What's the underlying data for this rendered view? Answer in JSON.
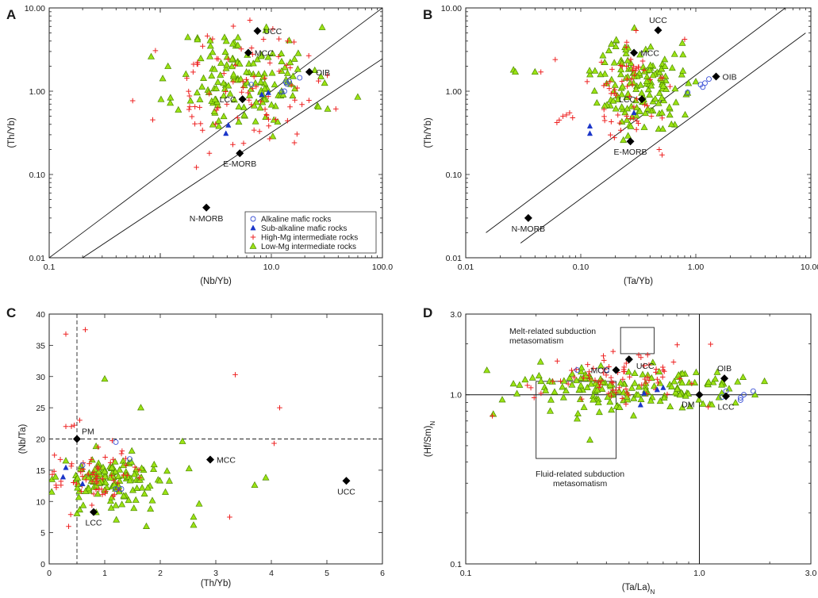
{
  "figure": {
    "legend": [
      {
        "label": "Alkaline mafic rocks",
        "symbol": "circle",
        "color": "#3a50d6"
      },
      {
        "label": "Sub-alkaline mafic rocks",
        "symbol": "triangle-filled",
        "color": "#1b36c9"
      },
      {
        "label": "High-Mg intermediate rocks",
        "symbol": "plus",
        "color": "#ee2222"
      },
      {
        "label": "Low-Mg intermediate rocks",
        "symbol": "triangle-open",
        "color": "#86d900"
      }
    ],
    "colors": {
      "alkaline": "#3a50d6",
      "subalkaline": "#1b36c9",
      "highmg": "#ee2222",
      "lowmg_fill": "#9be314",
      "lowmg_stroke": "#4e8a00",
      "ref": "#000000"
    }
  },
  "chart_data": [
    {
      "panel": "A",
      "type": "scatter",
      "xscale": "log",
      "yscale": "log",
      "xlabel": "(Nb/Yb)",
      "ylabel": "(Th/Yb)",
      "xlim": [
        0.1,
        100
      ],
      "ylim": [
        0.01,
        10
      ],
      "xticks": [
        0.1,
        10,
        100
      ],
      "xtick_labels": [
        "0.1",
        "10.0",
        "100.0"
      ],
      "xticks_unlabeled": [
        1
      ],
      "yticks": [
        0.01,
        0.1,
        1,
        10
      ],
      "ytick_labels": [
        "0.01",
        "0.10",
        "1.00",
        "10.00"
      ],
      "ref_lines": [
        {
          "name": "mantle-array-upper",
          "points": [
            [
              0.1,
              0.01
            ],
            [
              100,
              10
            ]
          ]
        },
        {
          "name": "mantle-array-lower",
          "points": [
            [
              0.2,
              0.01
            ],
            [
              100,
              2.45
            ]
          ]
        }
      ],
      "ref_points": [
        {
          "label": "UCC",
          "x": 7.5,
          "y": 5.3,
          "label_pos": "right"
        },
        {
          "label": "MCC",
          "x": 6.2,
          "y": 2.9,
          "label_pos": "right"
        },
        {
          "label": "LCC",
          "x": 5.5,
          "y": 0.8,
          "label_pos": "left"
        },
        {
          "label": "OIB",
          "x": 22,
          "y": 1.7,
          "label_pos": "right"
        },
        {
          "label": "E-MORB",
          "x": 5.2,
          "y": 0.18,
          "label_pos": "below"
        },
        {
          "label": "N-MORB",
          "x": 2.6,
          "y": 0.04,
          "label_pos": "below"
        }
      ],
      "clusters": [
        {
          "group": "lowmg",
          "n": 150,
          "cx": 5.8,
          "cy": 1.35,
          "sx": 0.3,
          "sy": 0.32,
          "seed": 11,
          "extra": [
            [
              1.7,
              1.6
            ],
            [
              2.8,
              2.6
            ],
            [
              60,
              0.85
            ],
            [
              4.5,
              3.7
            ]
          ]
        },
        {
          "group": "highmg",
          "n": 85,
          "cx": 5.0,
          "cy": 0.95,
          "sx": 0.35,
          "sy": 0.35,
          "seed": 23,
          "extra": [
            [
              2.4,
              0.34
            ],
            [
              14,
              4.0
            ],
            [
              16,
              3.9
            ],
            [
              3.3,
              0.63
            ],
            [
              8.5,
              4.2
            ]
          ]
        },
        {
          "group": "subalkaline",
          "n": 0,
          "extra": [
            [
              3.9,
              0.31
            ],
            [
              4.1,
              0.39
            ],
            [
              8.2,
              0.91
            ],
            [
              9.4,
              0.96
            ]
          ]
        },
        {
          "group": "alkaline",
          "n": 0,
          "extra": [
            [
              12.4,
              0.98
            ],
            [
              13.1,
              1.0
            ],
            [
              13.8,
              1.22
            ],
            [
              13.5,
              1.28
            ],
            [
              14.5,
              1.3
            ],
            [
              18.0,
              1.45
            ],
            [
              6.6,
              1.2
            ]
          ]
        }
      ],
      "legend_pos": "bottom-right"
    },
    {
      "panel": "B",
      "type": "scatter",
      "xscale": "log",
      "yscale": "log",
      "xlabel": "(Ta/Yb)",
      "ylabel": "(Th/Yb)",
      "xlim": [
        0.01,
        10
      ],
      "ylim": [
        0.01,
        10
      ],
      "xticks": [
        0.01,
        0.1,
        1,
        10
      ],
      "xtick_labels": [
        "0.01",
        "0.10",
        "1.00",
        "10.00"
      ],
      "yticks": [
        0.01,
        0.1,
        1,
        10
      ],
      "ytick_labels": [
        "0.01",
        "0.10",
        "1.00",
        "10.00"
      ],
      "ref_lines": [
        {
          "name": "mantle-array-upper",
          "points": [
            [
              0.015,
              0.02
            ],
            [
              6,
              10
            ]
          ]
        },
        {
          "name": "mantle-array-lower",
          "points": [
            [
              0.03,
              0.015
            ],
            [
              9,
              5
            ]
          ]
        }
      ],
      "ref_points": [
        {
          "label": "UCC",
          "x": 0.47,
          "y": 5.4,
          "label_pos": "above"
        },
        {
          "label": "MCC",
          "x": 0.29,
          "y": 2.9,
          "label_pos": "right"
        },
        {
          "label": "LCC",
          "x": 0.34,
          "y": 0.8,
          "label_pos": "left"
        },
        {
          "label": "OIB",
          "x": 1.5,
          "y": 1.5,
          "label_pos": "right"
        },
        {
          "label": "E-MORB",
          "x": 0.27,
          "y": 0.25,
          "label_pos": "below"
        },
        {
          "label": "N-MORB",
          "x": 0.035,
          "y": 0.03,
          "label_pos": "below"
        }
      ],
      "clusters": [
        {
          "group": "lowmg",
          "n": 150,
          "cx": 0.32,
          "cy": 1.2,
          "sx": 0.18,
          "sy": 0.28,
          "seed": 37,
          "extra": [
            [
              0.026,
              1.8
            ],
            [
              0.027,
              1.7
            ],
            [
              0.04,
              1.7
            ],
            [
              0.85,
              0.95
            ],
            [
              1.0,
              1.3
            ]
          ]
        },
        {
          "group": "highmg",
          "n": 60,
          "cx": 0.3,
          "cy": 1.0,
          "sx": 0.18,
          "sy": 0.3,
          "seed": 41,
          "extra": [
            [
              0.065,
              0.45
            ],
            [
              0.07,
              0.5
            ],
            [
              0.075,
              0.52
            ],
            [
              0.062,
              0.42
            ],
            [
              0.08,
              0.55
            ],
            [
              0.085,
              0.48
            ],
            [
              0.06,
              2.4
            ],
            [
              0.045,
              1.7
            ],
            [
              0.8,
              4.2
            ]
          ]
        },
        {
          "group": "subalkaline",
          "n": 0,
          "extra": [
            [
              0.12,
              0.31
            ],
            [
              0.12,
              0.38
            ],
            [
              0.29,
              0.55
            ]
          ]
        },
        {
          "group": "alkaline",
          "n": 0,
          "extra": [
            [
              0.85,
              0.97
            ],
            [
              1.1,
              1.2
            ],
            [
              1.2,
              1.25
            ],
            [
              1.3,
              1.4
            ],
            [
              1.15,
              1.12
            ]
          ]
        }
      ]
    },
    {
      "panel": "C",
      "type": "scatter",
      "xscale": "linear",
      "yscale": "linear",
      "xlabel": "(Th/Yb)",
      "ylabel": "(Nb/Ta)",
      "xlim": [
        0,
        6
      ],
      "ylim": [
        0,
        40
      ],
      "xticks": [
        0,
        1,
        2,
        3,
        4,
        5,
        6
      ],
      "xtick_labels": [
        "0",
        "1",
        "2",
        "3",
        "4",
        "5",
        "6"
      ],
      "yticks": [
        0,
        5,
        10,
        15,
        20,
        25,
        30,
        35,
        40
      ],
      "ytick_labels": [
        "0",
        "5",
        "10",
        "15",
        "20",
        "25",
        "30",
        "35",
        "40"
      ],
      "dashed_lines": [
        {
          "name": "pm-vertical",
          "x": 0.5
        },
        {
          "name": "pm-horizontal",
          "y": 20
        }
      ],
      "ref_points": [
        {
          "label": "PM",
          "x": 0.5,
          "y": 20,
          "label_pos": "upper-right"
        },
        {
          "label": "LCC",
          "x": 0.8,
          "y": 8.3,
          "label_pos": "below"
        },
        {
          "label": "MCC",
          "x": 2.9,
          "y": 16.7,
          "label_pos": "right"
        },
        {
          "label": "UCC",
          "x": 5.35,
          "y": 13.3,
          "label_pos": "below"
        }
      ],
      "clusters": [
        {
          "group": "lowmg",
          "n": 140,
          "cx": 1.15,
          "cy": 13.3,
          "sx": 0.5,
          "sy": 2.2,
          "seed": 53,
          "extra": [
            [
              1.0,
              29.6
            ],
            [
              1.65,
              25
            ],
            [
              2.4,
              19.6
            ],
            [
              2.6,
              7.5
            ],
            [
              2.6,
              6.2
            ],
            [
              2.7,
              9.6
            ],
            [
              3.7,
              12.6
            ],
            [
              3.9,
              13.8
            ],
            [
              1.75,
              6.0
            ],
            [
              0.3,
              16.5
            ]
          ]
        },
        {
          "group": "highmg",
          "n": 70,
          "cx": 0.7,
          "cy": 14.5,
          "sx": 0.5,
          "sy": 2.8,
          "seed": 61,
          "extra": [
            [
              0.3,
              36.8
            ],
            [
              0.65,
              37.5
            ],
            [
              3.35,
              30.3
            ],
            [
              4.15,
              25.0
            ],
            [
              4.05,
              19.3
            ],
            [
              3.25,
              7.5
            ],
            [
              0.35,
              6.0
            ],
            [
              0.3,
              22
            ],
            [
              0.4,
              22
            ],
            [
              0.45,
              22.2
            ],
            [
              0.55,
              23
            ]
          ]
        },
        {
          "group": "subalkaline",
          "n": 0,
          "extra": [
            [
              0.25,
              13.9
            ],
            [
              0.3,
              15.4
            ],
            [
              0.6,
              12.8
            ]
          ]
        },
        {
          "group": "alkaline",
          "n": 0,
          "extra": [
            [
              1.2,
              19.5
            ],
            [
              1.45,
              16.8
            ],
            [
              1.2,
              12.0
            ],
            [
              1.3,
              12.0
            ],
            [
              0.6,
              15.8
            ]
          ]
        }
      ]
    },
    {
      "panel": "D",
      "type": "scatter",
      "xscale": "log",
      "yscale": "log",
      "xlabel": "(Ta/La)",
      "xlabel_sub": "N",
      "ylabel": "(Hf/Sm)",
      "ylabel_sub": "N",
      "xlim": [
        0.1,
        3
      ],
      "ylim": [
        0.1,
        3
      ],
      "xticks": [
        0.1,
        1,
        3
      ],
      "xtick_labels": [
        "0.1",
        "1.0",
        "3.0"
      ],
      "yticks": [
        0.1,
        1,
        3
      ],
      "ytick_labels": [
        "0.1",
        "1.0",
        "3.0"
      ],
      "solid_lines": [
        {
          "name": "dm-vertical",
          "x": 1
        },
        {
          "name": "dm-horizontal",
          "y": 1
        }
      ],
      "boxes": [
        {
          "name": "melt-related-box",
          "x0": 0.46,
          "x1": 0.64,
          "y0": 1.75,
          "y1": 2.5,
          "label": "Melt-related subduction metasomatism",
          "lines": [
            "Melt-related subduction",
            "metasomatism"
          ]
        },
        {
          "name": "fluid-related-box",
          "x0": 0.2,
          "x1": 0.44,
          "y0": 0.42,
          "y1": 1.2,
          "label": "Fluid-related subduction metasomatism",
          "lines": [
            "Fluid-related subduction",
            "metasomatism"
          ]
        }
      ],
      "ref_points": [
        {
          "label": "UCC",
          "x": 0.5,
          "y": 1.62,
          "label_pos": "below-right"
        },
        {
          "label": "MCC",
          "x": 0.44,
          "y": 1.4,
          "label_pos": "left"
        },
        {
          "label": "OIB",
          "x": 1.28,
          "y": 1.25,
          "label_pos": "above"
        },
        {
          "label": "DM",
          "x": 1.0,
          "y": 1.0,
          "label_pos": "below-left"
        },
        {
          "label": "LCC",
          "x": 1.3,
          "y": 0.98,
          "label_pos": "below"
        }
      ],
      "clusters": [
        {
          "group": "lowmg",
          "n": 150,
          "cx": 0.52,
          "cy": 1.07,
          "sx": 0.28,
          "sy": 0.07,
          "seed": 71,
          "extra": [
            [
              0.16,
              1.16
            ],
            [
              0.17,
              1.14
            ],
            [
              0.34,
              0.54
            ],
            [
              0.23,
              0.8
            ],
            [
              1.9,
              1.2
            ],
            [
              0.3,
              0.72
            ],
            [
              0.75,
              0.85
            ],
            [
              0.62,
              0.92
            ]
          ]
        },
        {
          "group": "highmg",
          "n": 75,
          "cx": 0.48,
          "cy": 1.25,
          "sx": 0.15,
          "sy": 0.08,
          "seed": 83,
          "extra": [
            [
              0.13,
              0.75
            ],
            [
              0.19,
              1.1
            ],
            [
              0.21,
              1.02
            ],
            [
              0.55,
              1.72
            ],
            [
              0.7,
              1.4
            ]
          ]
        },
        {
          "group": "subalkaline",
          "n": 0,
          "extra": [
            [
              0.56,
              0.87
            ],
            [
              0.58,
              1.02
            ],
            [
              0.66,
              1.07
            ],
            [
              0.7,
              1.1
            ]
          ]
        },
        {
          "group": "alkaline",
          "n": 0,
          "extra": [
            [
              0.3,
              1.4
            ],
            [
              0.4,
              1.4
            ],
            [
              1.25,
              0.97
            ],
            [
              1.3,
              1.05
            ],
            [
              1.5,
              0.96
            ],
            [
              1.55,
              1.0
            ],
            [
              1.7,
              1.05
            ],
            [
              1.5,
              0.93
            ]
          ]
        }
      ]
    }
  ]
}
